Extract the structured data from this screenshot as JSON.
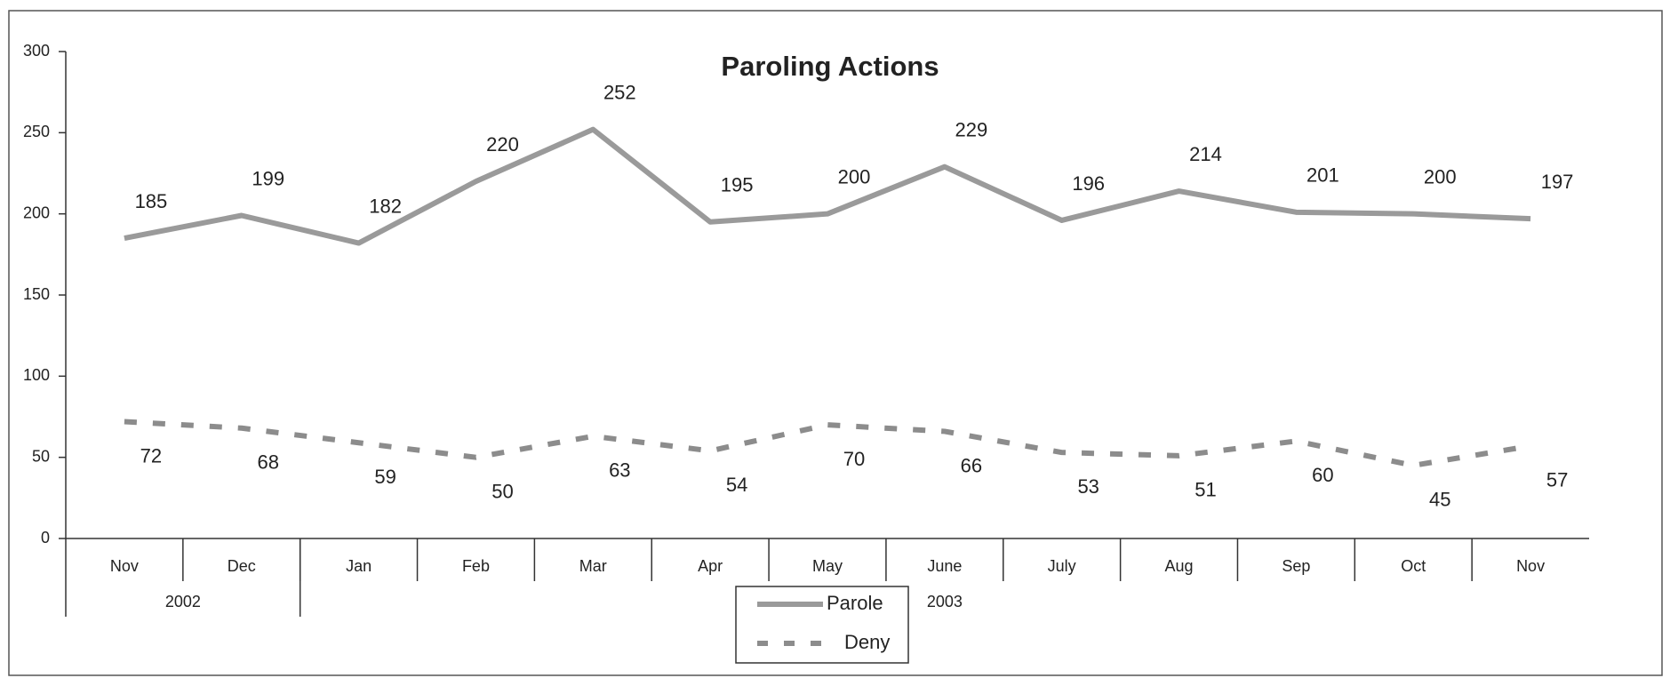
{
  "chart_data": {
    "type": "line",
    "title": "Paroling Actions",
    "categories": [
      "Nov",
      "Dec",
      "Jan",
      "Feb",
      "Mar",
      "Apr",
      "May",
      "June",
      "July",
      "Aug",
      "Sep",
      "Oct",
      "Nov"
    ],
    "groups": [
      {
        "label": "2002",
        "start": 0,
        "end": 1
      },
      {
        "label": "2003",
        "start": 2,
        "end": 12
      }
    ],
    "series": [
      {
        "name": "Parole",
        "color": "#9a9a9a",
        "dashed": false,
        "values": [
          185,
          199,
          182,
          220,
          252,
          195,
          200,
          229,
          196,
          214,
          201,
          200,
          197
        ]
      },
      {
        "name": "Deny",
        "color": "#8c8c8c",
        "dashed": true,
        "values": [
          72,
          68,
          59,
          50,
          63,
          54,
          70,
          66,
          53,
          51,
          60,
          45,
          57
        ]
      }
    ],
    "ylim": [
      0,
      300
    ],
    "yticks": [
      0,
      50,
      100,
      150,
      200,
      250,
      300
    ],
    "grid": false,
    "legend": "bottom"
  }
}
